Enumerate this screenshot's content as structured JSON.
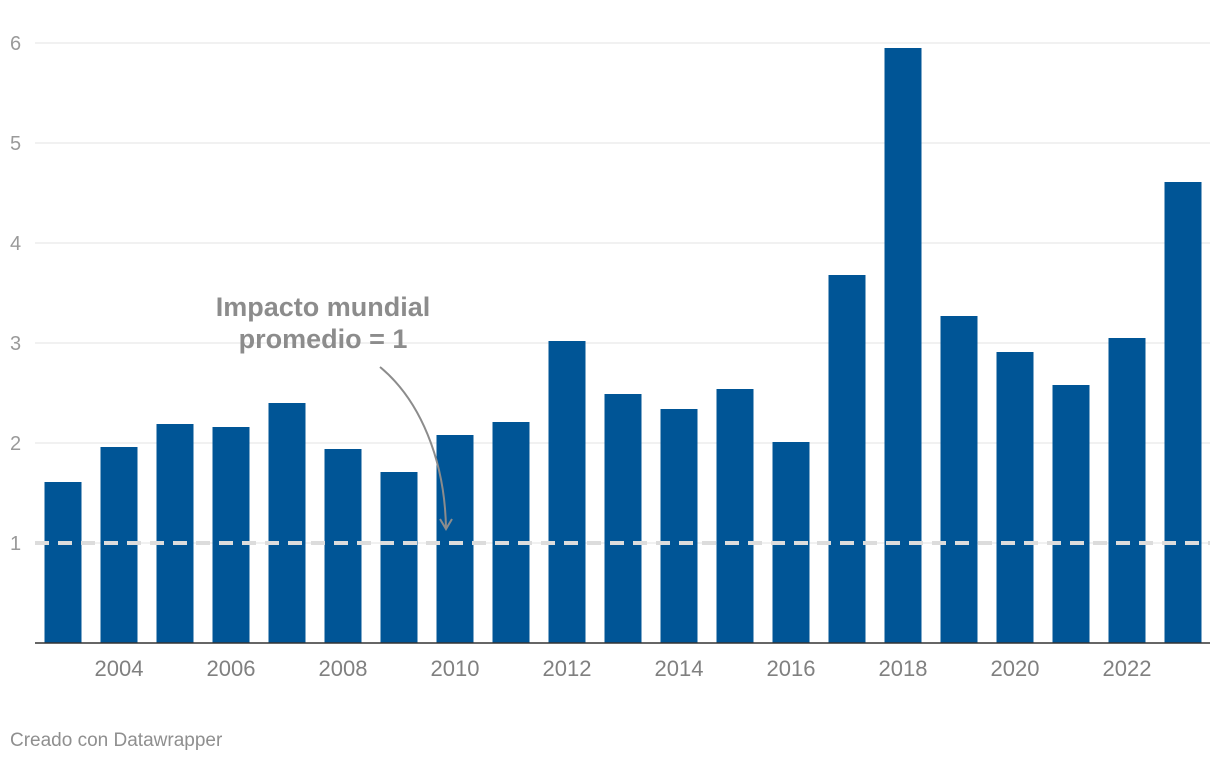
{
  "chart_data": {
    "type": "bar",
    "title": "",
    "xlabel": "",
    "ylabel": "",
    "categories": [
      "2003",
      "2004",
      "2005",
      "2006",
      "2007",
      "2008",
      "2009",
      "2010",
      "2011",
      "2012",
      "2013",
      "2014",
      "2015",
      "2016",
      "2017",
      "2018",
      "2019",
      "2020",
      "2021",
      "2022",
      "2023"
    ],
    "values": [
      1.61,
      1.96,
      2.19,
      2.16,
      2.4,
      1.94,
      1.71,
      2.08,
      2.21,
      3.02,
      2.49,
      2.34,
      2.54,
      2.01,
      3.68,
      5.95,
      3.27,
      2.91,
      2.58,
      3.05,
      4.61
    ],
    "x_tick_labels": [
      "2004",
      "2006",
      "2008",
      "2010",
      "2012",
      "2014",
      "2016",
      "2018",
      "2020",
      "2022"
    ],
    "y_ticks": [
      1,
      2,
      3,
      4,
      5,
      6
    ],
    "y_tick_labels": [
      "1",
      "2",
      "3",
      "4",
      "5",
      "6"
    ],
    "ylim": [
      0,
      6
    ],
    "grid": true,
    "reference_line": {
      "value": 1,
      "style": "dashed"
    },
    "annotation": {
      "line1": "Impacto mundial",
      "line2": "promedio = 1",
      "points_to_category": "2010",
      "points_to_value": 1
    }
  },
  "colors": {
    "bar": "#005596",
    "grid": "#e3e3e3",
    "reference_line": "#dcdcdc",
    "axis": "#333333",
    "annotation": "#8c8c8c"
  },
  "footer": {
    "credit": "Creado con Datawrapper"
  }
}
